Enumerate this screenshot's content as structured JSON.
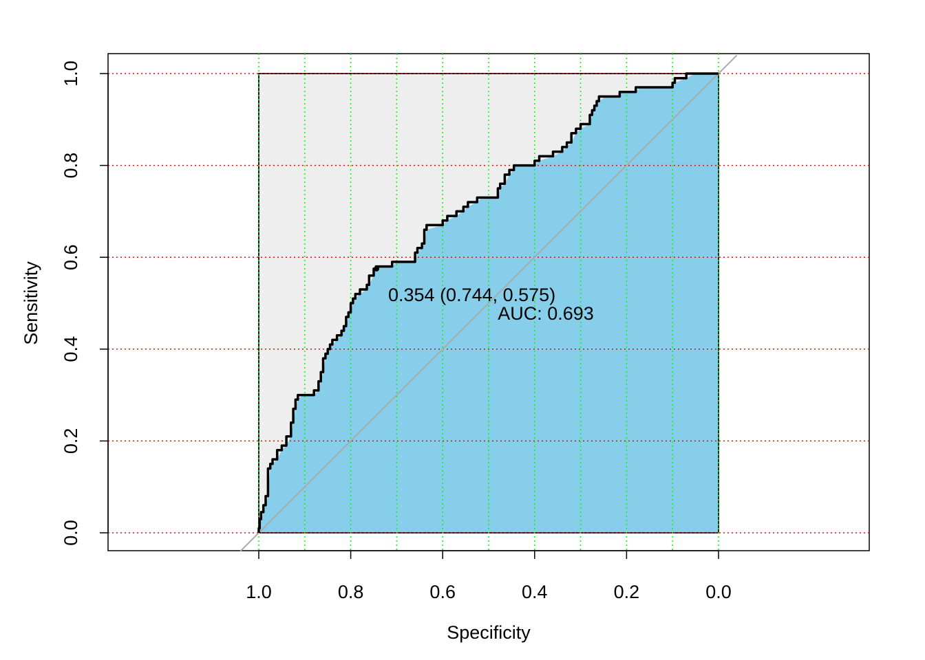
{
  "chart_data": {
    "type": "line",
    "subtype": "roc-curve",
    "title": "",
    "xlabel": "Specificity",
    "ylabel": "Sensitivity",
    "x_reversed": true,
    "xlim": [
      0,
      1
    ],
    "ylim": [
      0,
      1
    ],
    "x_ticks": [
      "1.0",
      "0.8",
      "0.6",
      "0.4",
      "0.2",
      "0.0"
    ],
    "x_tick_values": [
      1.0,
      0.8,
      0.6,
      0.4,
      0.2,
      0.0
    ],
    "y_ticks": [
      "0.0",
      "0.2",
      "0.4",
      "0.6",
      "0.8",
      "1.0"
    ],
    "y_tick_values": [
      0.0,
      0.2,
      0.4,
      0.6,
      0.8,
      1.0
    ],
    "grid": {
      "horizontal": {
        "values": [
          0.0,
          0.2,
          0.4,
          0.6,
          0.8,
          1.0
        ],
        "color": "#ff0000",
        "style": "dotted"
      },
      "vertical": {
        "values": [
          1.0,
          0.9,
          0.8,
          0.7,
          0.6,
          0.5,
          0.4,
          0.3,
          0.2,
          0.1,
          0.0
        ],
        "color": "#00ff00",
        "style": "dotted"
      }
    },
    "colors": {
      "auc_fill": "#87ceeb",
      "max_fill": "#eeeeee",
      "curve": "#000000",
      "identity": "#aaaaaa"
    },
    "series": [
      {
        "values_spec_sens": [
          [
            1.0,
            0.0
          ],
          [
            0.998,
            0.01
          ],
          [
            0.995,
            0.03
          ],
          [
            0.99,
            0.045
          ],
          [
            0.985,
            0.06
          ],
          [
            0.98,
            0.08
          ],
          [
            0.975,
            0.14
          ],
          [
            0.97,
            0.15
          ],
          [
            0.96,
            0.16
          ],
          [
            0.95,
            0.18
          ],
          [
            0.94,
            0.19
          ],
          [
            0.93,
            0.21
          ],
          [
            0.925,
            0.24
          ],
          [
            0.92,
            0.27
          ],
          [
            0.915,
            0.29
          ],
          [
            0.905,
            0.3
          ],
          [
            0.88,
            0.3
          ],
          [
            0.87,
            0.31
          ],
          [
            0.865,
            0.33
          ],
          [
            0.86,
            0.35
          ],
          [
            0.855,
            0.38
          ],
          [
            0.85,
            0.39
          ],
          [
            0.845,
            0.4
          ],
          [
            0.84,
            0.41
          ],
          [
            0.83,
            0.42
          ],
          [
            0.82,
            0.43
          ],
          [
            0.815,
            0.44
          ],
          [
            0.81,
            0.45
          ],
          [
            0.805,
            0.47
          ],
          [
            0.8,
            0.48
          ],
          [
            0.795,
            0.5
          ],
          [
            0.79,
            0.51
          ],
          [
            0.78,
            0.52
          ],
          [
            0.765,
            0.53
          ],
          [
            0.76,
            0.54
          ],
          [
            0.75,
            0.56
          ],
          [
            0.745,
            0.575
          ],
          [
            0.74,
            0.58
          ],
          [
            0.71,
            0.58
          ],
          [
            0.7,
            0.59
          ],
          [
            0.66,
            0.59
          ],
          [
            0.655,
            0.61
          ],
          [
            0.645,
            0.62
          ],
          [
            0.64,
            0.63
          ],
          [
            0.635,
            0.66
          ],
          [
            0.6,
            0.67
          ],
          [
            0.59,
            0.68
          ],
          [
            0.57,
            0.69
          ],
          [
            0.555,
            0.7
          ],
          [
            0.545,
            0.71
          ],
          [
            0.525,
            0.72
          ],
          [
            0.515,
            0.73
          ],
          [
            0.48,
            0.73
          ],
          [
            0.475,
            0.75
          ],
          [
            0.465,
            0.76
          ],
          [
            0.455,
            0.78
          ],
          [
            0.445,
            0.79
          ],
          [
            0.44,
            0.8
          ],
          [
            0.4,
            0.8
          ],
          [
            0.39,
            0.81
          ],
          [
            0.36,
            0.82
          ],
          [
            0.34,
            0.83
          ],
          [
            0.33,
            0.84
          ],
          [
            0.32,
            0.85
          ],
          [
            0.31,
            0.87
          ],
          [
            0.3,
            0.88
          ],
          [
            0.28,
            0.89
          ],
          [
            0.275,
            0.91
          ],
          [
            0.27,
            0.92
          ],
          [
            0.265,
            0.93
          ],
          [
            0.26,
            0.94
          ],
          [
            0.245,
            0.95
          ],
          [
            0.215,
            0.95
          ],
          [
            0.21,
            0.96
          ],
          [
            0.18,
            0.96
          ],
          [
            0.17,
            0.97
          ],
          [
            0.1,
            0.97
          ],
          [
            0.095,
            0.98
          ],
          [
            0.07,
            0.99
          ],
          [
            0.05,
            1.0
          ],
          [
            0.0,
            1.0
          ]
        ]
      }
    ],
    "annotations": {
      "threshold_point": {
        "specificity": 0.744,
        "sensitivity": 0.575
      },
      "threshold_label": "0.354 (0.744, 0.575)",
      "auc_label": "AUC: 0.693"
    }
  }
}
